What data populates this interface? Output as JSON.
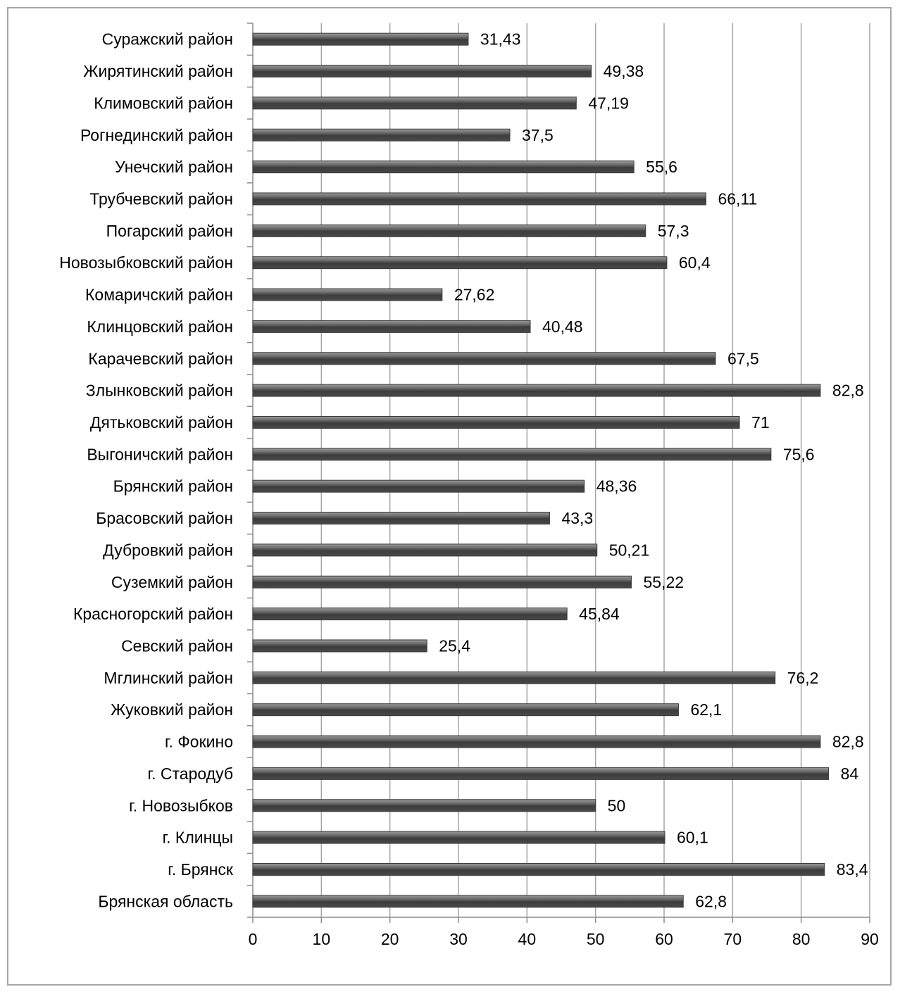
{
  "chart_data": {
    "type": "bar",
    "orientation": "horizontal",
    "categories": [
      "Суражский район",
      "Жирятинский район",
      "Климовский район",
      "Рогнединский район",
      "Унечский район",
      "Трубчевский район",
      "Погарский район",
      "Новозыбковский район",
      "Комаричский район",
      "Клинцовский район",
      "Карачевский район",
      "Злынковский район",
      "Дятьковский район",
      "Выгоничский район",
      "Брянский район",
      "Брасовский район",
      "Дубровкий район",
      "Суземкий район",
      "Красногорский район",
      "Севский район",
      "Мглинский район",
      "Жуковкий район",
      "г. Фокино",
      "г. Стародуб",
      "г. Новозыбков",
      "г. Клинцы",
      "г. Брянск",
      "Брянская область"
    ],
    "values": [
      31.43,
      49.38,
      47.19,
      37.5,
      55.6,
      66.11,
      57.3,
      60.4,
      27.62,
      40.48,
      67.5,
      82.8,
      71,
      75.6,
      48.36,
      43.3,
      50.21,
      55.22,
      45.84,
      25.4,
      76.2,
      62.1,
      82.8,
      84,
      50,
      60.1,
      83.4,
      62.8
    ],
    "value_labels": [
      "31,43",
      "49,38",
      "47,19",
      "37,5",
      "55,6",
      "66,11",
      "57,3",
      "60,4",
      "27,62",
      "40,48",
      "67,5",
      "82,8",
      "71",
      "75,6",
      "48,36",
      "43,3",
      "50,21",
      "55,22",
      "45,84",
      "25,4",
      "76,2",
      "62,1",
      "82,8",
      "84",
      "50",
      "60,1",
      "83,4",
      "62,8"
    ],
    "xlim": [
      0,
      90
    ],
    "xticks": [
      "0",
      "10",
      "20",
      "30",
      "40",
      "50",
      "60",
      "70",
      "80",
      "90"
    ],
    "grid": true,
    "legend": "none",
    "bar_color": "#595959",
    "grid_color": "#a6a6a6"
  }
}
